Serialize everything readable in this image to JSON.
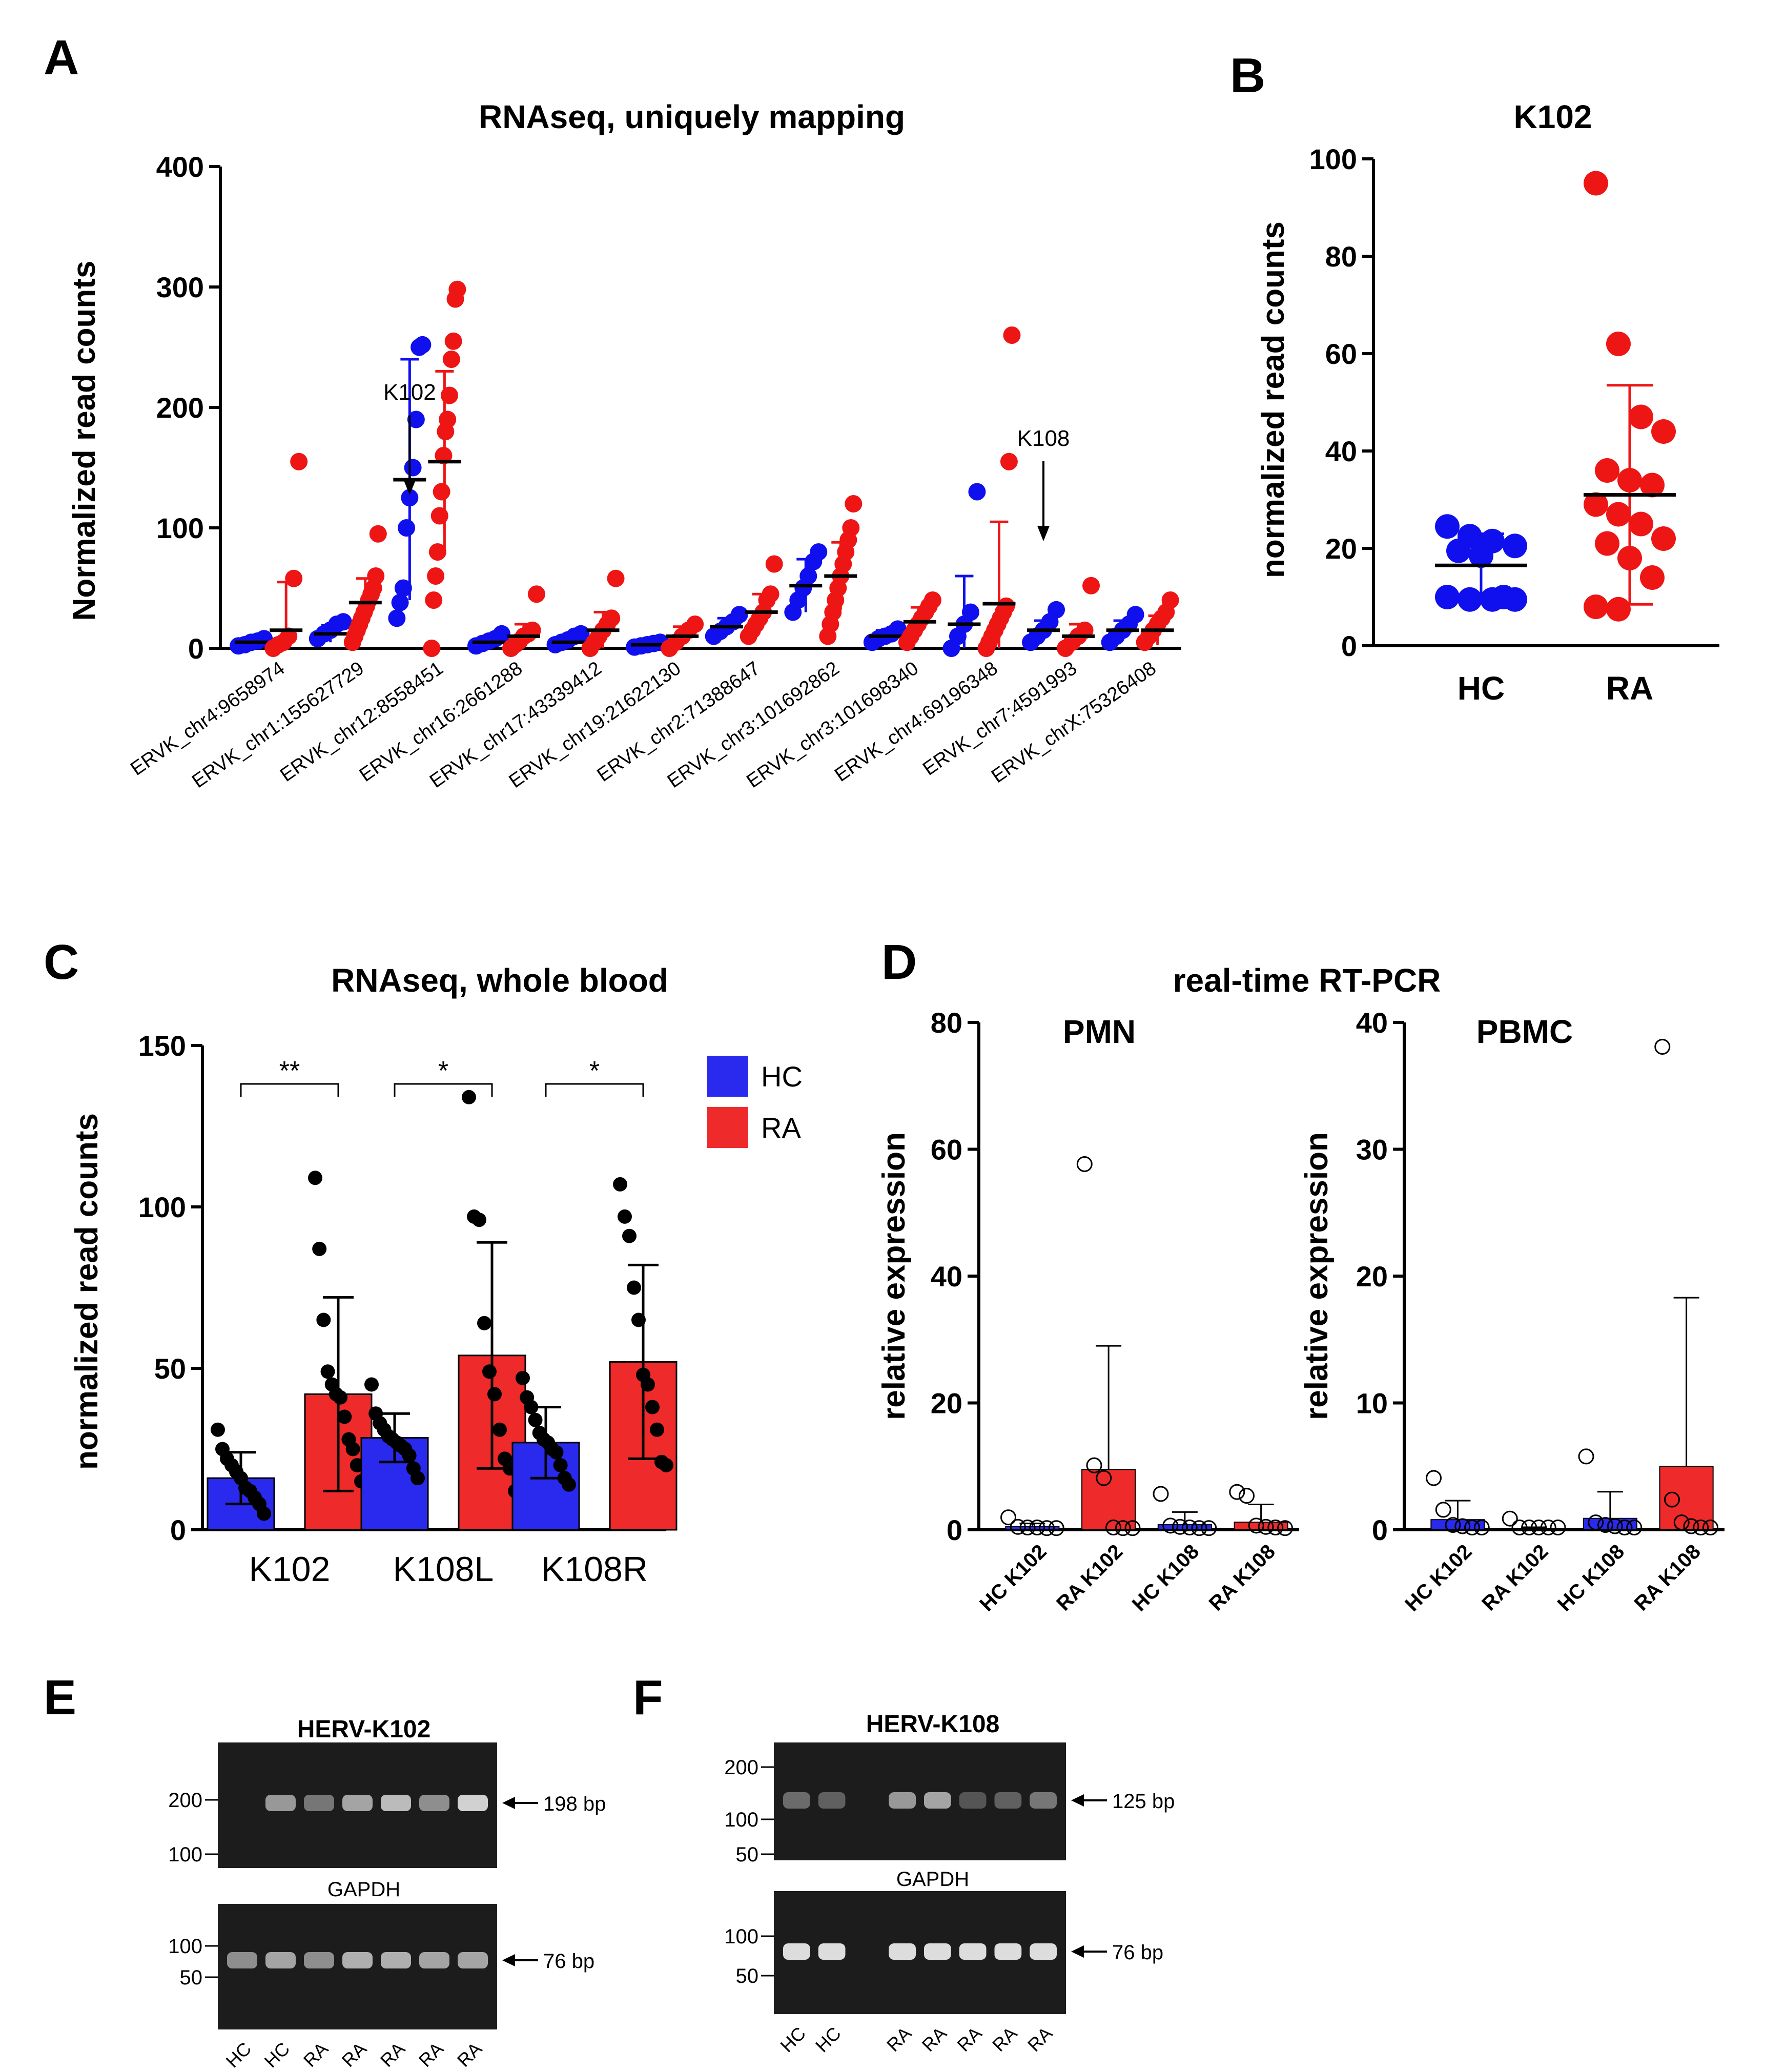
{
  "colors": {
    "hc": "#1010ee",
    "ra": "#ee1515",
    "hc_bar": "#2a2aee",
    "ra_bar": "#ee2a2a",
    "black": "#000000"
  },
  "panels": {
    "A": {
      "letter": "A"
    },
    "B": {
      "letter": "B"
    },
    "C": {
      "letter": "C"
    },
    "D": {
      "letter": "D",
      "title": "real-time RT-PCR"
    },
    "E": {
      "letter": "E"
    },
    "F": {
      "letter": "F"
    }
  },
  "chart_data": [
    {
      "id": "A",
      "type": "scatter",
      "title": "RNAseq, uniquely mapping",
      "ylabel": "Normalized read counts",
      "ylim": [
        0,
        400
      ],
      "yticks": [
        "0",
        "100",
        "200",
        "300",
        "400"
      ],
      "categories": [
        "ERVK_chr4:9658974",
        "ERVK_chr1:155627729",
        "ERVK_chr12:8558451",
        "ERVK_chr16:2661288",
        "ERVK_chr17:43339412",
        "ERVK_chr19:21622130",
        "ERVK_chr2:71388647",
        "ERVK_chr3:101692862",
        "ERVK_chr3:101698340",
        "ERVK_chr4:69196348",
        "ERVK_chr7:4591993",
        "ERVK_chrX:75326408"
      ],
      "annotations": [
        {
          "text": "K102",
          "category": 2
        },
        {
          "text": "K108",
          "category": 10
        }
      ],
      "series": [
        {
          "name": "HC",
          "mean": [
            5,
            12,
            140,
            5,
            5,
            3,
            18,
            52,
            10,
            20,
            15,
            15
          ],
          "sd": [
            3,
            7,
            100,
            4,
            4,
            2,
            7,
            22,
            5,
            40,
            8,
            8
          ],
          "points": [
            [
              2,
              3,
              5,
              6,
              8
            ],
            [
              8,
              12,
              15,
              20,
              22
            ],
            [
              25,
              38,
              50,
              100,
              125,
              150,
              190,
              250,
              252
            ],
            [
              2,
              4,
              6,
              8,
              12
            ],
            [
              3,
              5,
              7,
              10,
              12
            ],
            [
              1,
              2,
              3,
              4,
              5
            ],
            [
              10,
              14,
              18,
              22,
              28
            ],
            [
              30,
              40,
              50,
              60,
              72,
              80
            ],
            [
              5,
              8,
              10,
              12,
              16
            ],
            [
              0,
              10,
              20,
              30,
              130
            ],
            [
              5,
              10,
              15,
              22,
              32
            ],
            [
              5,
              10,
              15,
              20,
              28
            ]
          ]
        },
        {
          "name": "RA",
          "mean": [
            15,
            38,
            155,
            10,
            15,
            10,
            30,
            60,
            22,
            37,
            10,
            15
          ],
          "sd": [
            40,
            20,
            75,
            10,
            15,
            8,
            15,
            28,
            12,
            68,
            10,
            12
          ],
          "points": [
            [
              0,
              3,
              5,
              10,
              58,
              155
            ],
            [
              5,
              10,
              15,
              20,
              25,
              30,
              35,
              40,
              45,
              50,
              60,
              95
            ],
            [
              0,
              40,
              60,
              80,
              110,
              130,
              160,
              180,
              190,
              210,
              240,
              255,
              290,
              298
            ],
            [
              0,
              3,
              6,
              10,
              12,
              15,
              45
            ],
            [
              0,
              5,
              10,
              15,
              20,
              25,
              58
            ],
            [
              0,
              5,
              10,
              15,
              20
            ],
            [
              10,
              15,
              20,
              25,
              30,
              40,
              45,
              70
            ],
            [
              10,
              20,
              30,
              40,
              50,
              60,
              70,
              80,
              90,
              100,
              120
            ],
            [
              5,
              10,
              15,
              20,
              25,
              30,
              35,
              40
            ],
            [
              0,
              5,
              10,
              15,
              20,
              25,
              30,
              35,
              155,
              260
            ],
            [
              0,
              5,
              10,
              15,
              52
            ],
            [
              5,
              10,
              15,
              20,
              25,
              30,
              40
            ]
          ]
        }
      ]
    },
    {
      "id": "B",
      "type": "scatter",
      "title": "K102",
      "ylabel": "normalized read counts",
      "ylim": [
        0,
        100
      ],
      "yticks": [
        "0",
        "20",
        "40",
        "60",
        "80",
        "100"
      ],
      "categories": [
        "HC",
        "RA"
      ],
      "series": [
        {
          "name": "HC",
          "mean": 16.5,
          "sd": 6.5,
          "points": [
            24.5,
            22.5,
            21.5,
            20.5,
            19.5,
            18.5,
            10,
            10,
            9.5,
            9.5,
            9.5
          ]
        },
        {
          "name": "RA",
          "mean": 31,
          "sd": 22.5,
          "points": [
            95,
            62,
            47,
            44,
            36,
            34,
            33,
            29,
            27,
            25,
            22,
            21,
            18,
            14,
            8,
            7.5
          ]
        }
      ]
    },
    {
      "id": "C",
      "type": "bar",
      "title": "RNAseq, whole blood",
      "ylabel": "normalized read counts",
      "ylim": [
        0,
        150
      ],
      "yticks": [
        "0",
        "50",
        "100",
        "150"
      ],
      "categories": [
        "K102",
        "K108L",
        "K108R"
      ],
      "legend": [
        "HC",
        "RA"
      ],
      "significance": [
        "**",
        "*",
        "*"
      ],
      "series": [
        {
          "name": "HC",
          "values": [
            16,
            28.5,
            27
          ],
          "sd": [
            8,
            7.5,
            11
          ],
          "points": [
            [
              31,
              25,
              22,
              20,
              18,
              16,
              13,
              12,
              10,
              8,
              5
            ],
            [
              45,
              36,
              33,
              31,
              29,
              28,
              27,
              26,
              25,
              23,
              19,
              16
            ],
            [
              47,
              41,
              38,
              34,
              30,
              28,
              27,
              25,
              24,
              20,
              16,
              14
            ]
          ]
        },
        {
          "name": "RA",
          "values": [
            42,
            54,
            52
          ],
          "sd": [
            30,
            35,
            30
          ],
          "points": [
            [
              109,
              87,
              65,
              49,
              45,
              42,
              41,
              35,
              28,
              25,
              20,
              15
            ],
            [
              134,
              97,
              96,
              64,
              49,
              42,
              31,
              22,
              19,
              12
            ],
            [
              107,
              97,
              91,
              75,
              65,
              48,
              45,
              38,
              31,
              21,
              20
            ]
          ]
        }
      ]
    },
    {
      "id": "D1",
      "type": "bar",
      "title": "PMN",
      "ylabel": "relative expression",
      "ylim": [
        0,
        80
      ],
      "yticks": [
        "0",
        "20",
        "40",
        "60",
        "80"
      ],
      "categories": [
        "HC K102",
        "RA K102",
        "HC K108",
        "RA K108"
      ],
      "values": [
        0.5,
        9.5,
        0.8,
        1.2
      ],
      "sd": [
        0.5,
        19.5,
        2,
        2.8
      ],
      "group": [
        "HC",
        "RA",
        "HC",
        "RA"
      ],
      "points": [
        [
          1.8,
          0.3,
          0.2,
          0.2,
          0.1,
          0.1
        ],
        [
          57.5,
          10,
          8,
          0.2,
          0.1,
          0.1
        ],
        [
          5.5,
          0.5,
          0.3,
          0.2,
          0.1,
          0.1
        ],
        [
          5.8,
          5.2,
          0.5,
          0.3,
          0.2,
          0.1
        ]
      ]
    },
    {
      "id": "D2",
      "type": "bar",
      "title": "PBMC",
      "ylabel": "relative expression",
      "ylim": [
        0,
        40
      ],
      "yticks": [
        "0",
        "10",
        "20",
        "30",
        "40"
      ],
      "categories": [
        "HC K102",
        "RA K102",
        "HC K108",
        "RA K108"
      ],
      "values": [
        0.8,
        0.1,
        0.9,
        5
      ],
      "sd": [
        1.5,
        0.1,
        2.1,
        13.3
      ],
      "group": [
        "HC",
        "RA",
        "HC",
        "RA"
      ],
      "points": [
        [
          4,
          1.5,
          0.3,
          0.2,
          0.1,
          0.1
        ],
        [
          0.8,
          0.1,
          0.1,
          0.1,
          0.1,
          0.1
        ],
        [
          5.7,
          0.5,
          0.3,
          0.2,
          0.1,
          0.1
        ],
        [
          38,
          2.3,
          0.5,
          0.2,
          0.1,
          0.1
        ]
      ]
    }
  ],
  "gels": {
    "E": {
      "top": {
        "title": "HERV-K102",
        "markers": [
          "200",
          "100"
        ],
        "band": "198 bp"
      },
      "bottom": {
        "title": "GAPDH",
        "markers": [
          "100",
          "50"
        ],
        "band": "76 bp"
      },
      "lanes": [
        "HC",
        "HC",
        "RA",
        "RA",
        "RA",
        "RA",
        "RA"
      ],
      "top_intensity": [
        0,
        0.55,
        0.4,
        0.6,
        0.7,
        0.5,
        0.8
      ],
      "bottom_intensity": [
        0.5,
        0.6,
        0.5,
        0.65,
        0.65,
        0.6,
        0.6
      ]
    },
    "F": {
      "top": {
        "title": "HERV-K108",
        "markers": [
          "200",
          "100",
          "50"
        ],
        "band": "125 bp"
      },
      "bottom": {
        "title": "GAPDH",
        "markers": [
          "100",
          "50"
        ],
        "band": "76 bp"
      },
      "lanes": [
        "HC",
        "HC",
        "",
        "RA",
        "RA",
        "RA",
        "RA",
        "RA"
      ],
      "top_intensity": [
        0.35,
        0.3,
        0,
        0.55,
        0.6,
        0.25,
        0.3,
        0.4
      ],
      "bottom_intensity": [
        0.85,
        0.85,
        0,
        0.85,
        0.85,
        0.85,
        0.85,
        0.85
      ]
    }
  }
}
